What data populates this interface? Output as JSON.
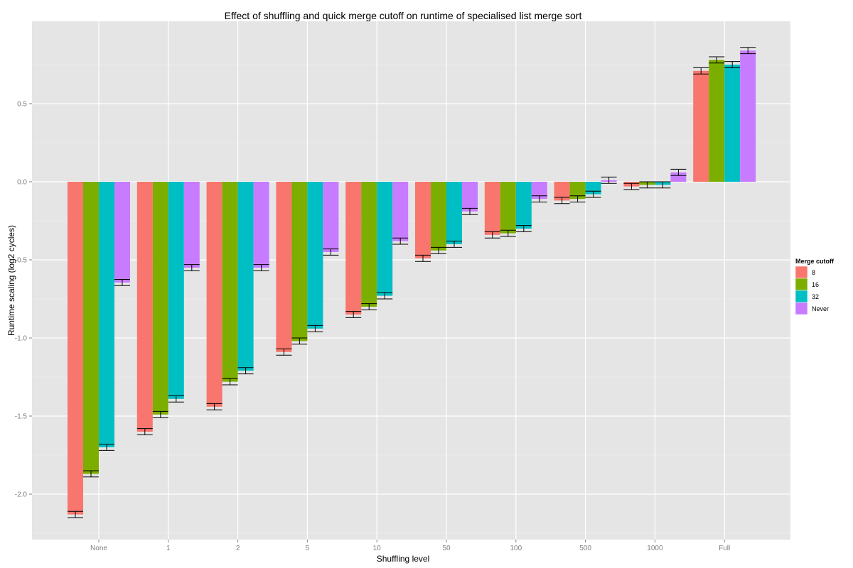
{
  "chart_data": {
    "type": "bar",
    "title": "Effect of shuffling and quick merge cutoff on runtime of specialised list merge sort",
    "xlabel": "Shuffling level",
    "ylabel": "Runtime scaling (log2 cycles)",
    "ylim": [
      -2.29,
      1.03
    ],
    "yticks": [
      -2.0,
      -1.5,
      -1.0,
      -0.5,
      0.0,
      0.5
    ],
    "ytick_labels": [
      "-2.0",
      "-1.5",
      "-1.0",
      "-0.5",
      "0.0",
      "0.5"
    ],
    "grid": true,
    "categories": [
      "None",
      "1",
      "2",
      "5",
      "10",
      "50",
      "100",
      "500",
      "1000",
      "Full"
    ],
    "legend": {
      "title": "Merge cutoff",
      "placement": "right"
    },
    "error_halfwidth": 0.02,
    "series": [
      {
        "name": "8",
        "color": "#F8766D",
        "values": [
          -2.13,
          -1.6,
          -1.44,
          -1.09,
          -0.85,
          -0.49,
          -0.34,
          -0.12,
          -0.03,
          0.71
        ]
      },
      {
        "name": "16",
        "color": "#7CAE00",
        "values": [
          -1.87,
          -1.49,
          -1.28,
          -1.02,
          -0.8,
          -0.44,
          -0.33,
          -0.11,
          -0.02,
          0.78
        ]
      },
      {
        "name": "32",
        "color": "#00BFC4",
        "values": [
          -1.7,
          -1.39,
          -1.21,
          -0.94,
          -0.73,
          -0.4,
          -0.3,
          -0.08,
          -0.02,
          0.75
        ]
      },
      {
        "name": "Never",
        "color": "#C77CFF",
        "values": [
          -0.645,
          -0.55,
          -0.55,
          -0.45,
          -0.38,
          -0.19,
          -0.11,
          0.01,
          0.06,
          0.84
        ]
      }
    ]
  }
}
